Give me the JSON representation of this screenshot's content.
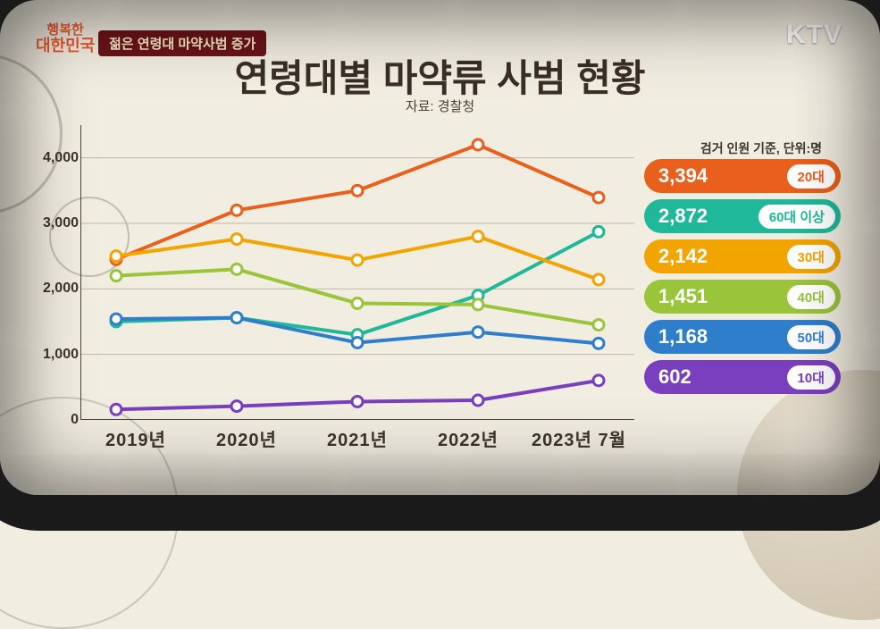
{
  "logo": {
    "ktv": "KTV",
    "prog_line1": "행복한",
    "prog_line2": "대한민국"
  },
  "topic_badge": "젊은 연령대 마약사범 증가",
  "title": "연령대별 마약류 사범 현황",
  "subtitle": "자료: 경찰청",
  "legend_note": "검거 인원 기준, 단위:명",
  "chart": {
    "type": "line",
    "background_color": "#f2ede1",
    "grid_color": "#bfb7a8",
    "axis_color": "#4b4239",
    "line_width": 4,
    "marker_radius": 6,
    "marker_style": "circle-hollow",
    "x_categories": [
      "2019년",
      "2020년",
      "2021년",
      "2022년",
      "2023년 7월"
    ],
    "ylim": [
      0,
      4500
    ],
    "yticks": [
      0,
      1000,
      2000,
      3000,
      4000
    ],
    "ytick_labels": [
      "0",
      "1,000",
      "2,000",
      "3,000",
      "4,000"
    ],
    "series": [
      {
        "name": "20대",
        "color": "#e95f1c",
        "values": [
          2450,
          3200,
          3500,
          4200,
          3394
        ],
        "final_label": "3,394"
      },
      {
        "name": "60대 이상",
        "color": "#1fb89a",
        "values": [
          1500,
          1560,
          1300,
          1900,
          2872
        ],
        "final_label": "2,872"
      },
      {
        "name": "30대",
        "color": "#f2a400",
        "values": [
          2500,
          2760,
          2440,
          2800,
          2142
        ],
        "final_label": "2,142"
      },
      {
        "name": "40대",
        "color": "#9ac43a",
        "values": [
          2200,
          2300,
          1780,
          1760,
          1451
        ],
        "final_label": "1,451"
      },
      {
        "name": "50대",
        "color": "#2f7ecb",
        "values": [
          1540,
          1560,
          1180,
          1340,
          1168
        ],
        "final_label": "1,168"
      },
      {
        "name": "10대",
        "color": "#7a3fbf",
        "values": [
          160,
          210,
          280,
          300,
          602
        ],
        "final_label": "602"
      }
    ]
  },
  "label_fontsize": 20,
  "tick_fontsize": 16
}
